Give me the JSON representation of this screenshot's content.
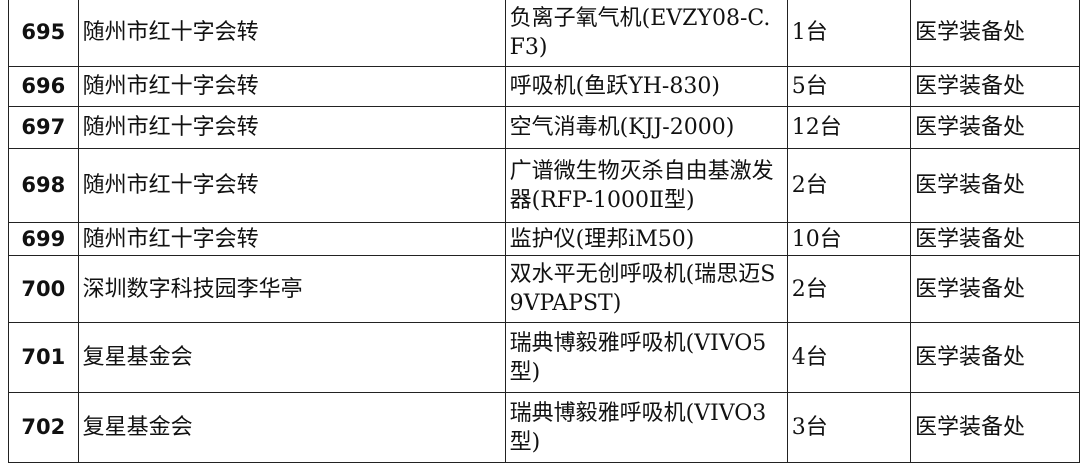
{
  "rows": [
    {
      "no": "695",
      "donor": "随州市红十字会转",
      "item": "负离子氧气机(EVZY08-C.F3)",
      "qty": "1台",
      "dept": "医学装备处"
    },
    {
      "no": "696",
      "donor": "随州市红十字会转",
      "item": "呼吸机(鱼跃YH-830)",
      "qty": "5台",
      "dept": "医学装备处"
    },
    {
      "no": "697",
      "donor": "随州市红十字会转",
      "item": "空气消毒机(KJJ-2000)",
      "qty": "12台",
      "dept": "医学装备处"
    },
    {
      "no": "698",
      "donor": "随州市红十字会转",
      "item": "广谱微生物灭杀自由基激发器(RFP-1000Ⅱ型)",
      "qty": "2台",
      "dept": "医学装备处"
    },
    {
      "no": "699",
      "donor": "随州市红十字会转",
      "item": "监护仪(理邦iM50)",
      "qty": "10台",
      "dept": "医学装备处"
    },
    {
      "no": "700",
      "donor": "深圳数字科技园李华亭",
      "item": "双水平无创呼吸机(瑞思迈S9VPAPST)",
      "qty": "2台",
      "dept": "医学装备处"
    },
    {
      "no": "701",
      "donor": "复星基金会",
      "item": "瑞典博毅雅呼吸机(VIVO5型)",
      "qty": "4台",
      "dept": "医学装备处"
    },
    {
      "no": "702",
      "donor": "复星基金会",
      "item": "瑞典博毅雅呼吸机(VIVO3型)",
      "qty": "3台",
      "dept": "医学装备处"
    }
  ]
}
